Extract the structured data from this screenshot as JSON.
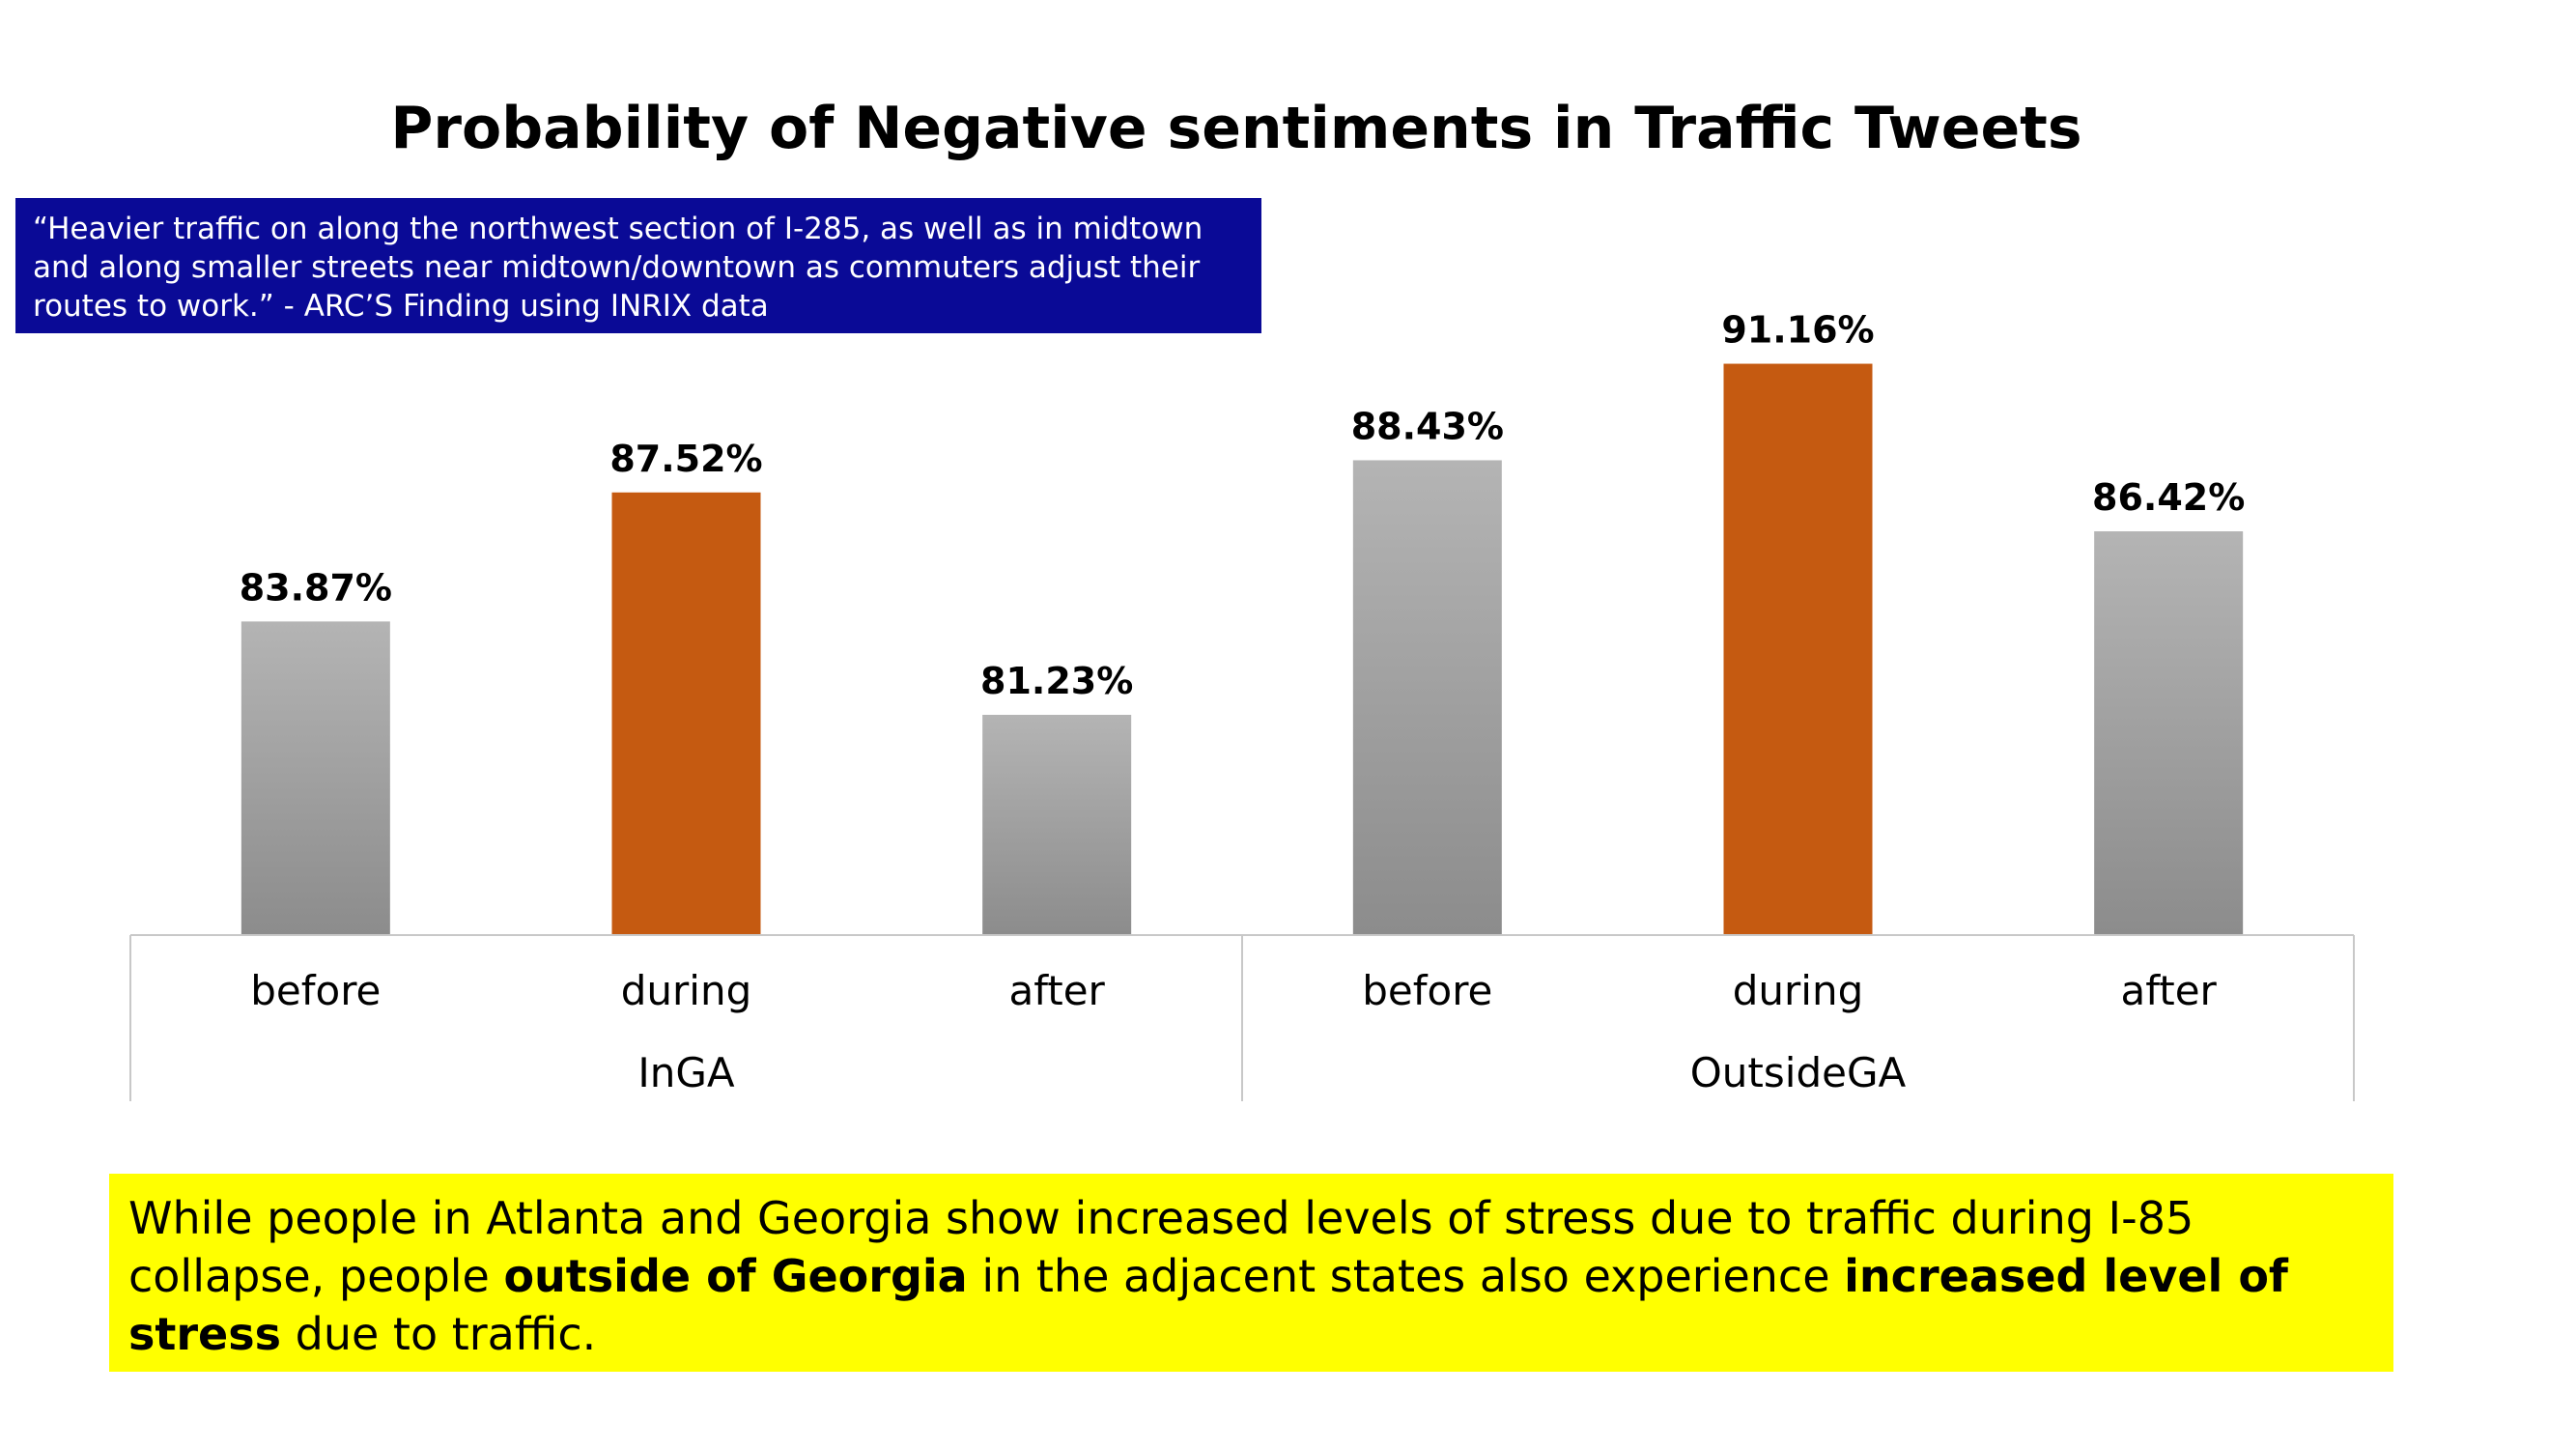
{
  "chart_data": {
    "type": "bar",
    "title": "Probability of Negative sentiments in Traffic Tweets",
    "groups": [
      {
        "name": "InGA",
        "categories": [
          "before",
          "during",
          "after"
        ],
        "values": [
          83.87,
          87.52,
          81.23
        ],
        "labels": [
          "83.87%",
          "87.52%",
          "81.23%"
        ]
      },
      {
        "name": "OutsideGA",
        "categories": [
          "before",
          "during",
          "after"
        ],
        "values": [
          88.43,
          91.16,
          86.42
        ],
        "labels": [
          "88.43%",
          "91.16%",
          "86.42%"
        ]
      }
    ],
    "ylim": [
      75,
      95
    ],
    "grid": false,
    "legend": "none",
    "colors": {
      "before": "#a6a6a6",
      "during": "#c55a11",
      "after": "#a6a6a6"
    }
  },
  "quote": {
    "text": "“Heavier traffic on along the northwest section of I-285, as well as in midtown and along smaller streets near midtown/downtown as commuters adjust their routes to work.” - ARC’S Finding using INRIX data",
    "background": "#0a0a96"
  },
  "summary": {
    "part1": "While people in Atlanta and  Georgia show increased levels of stress due to traffic during I-85 collapse,  people ",
    "bold1": "outside of Georgia",
    "part2": " in the adjacent states also experience ",
    "bold2": "increased level of stress",
    "part3": " due to traffic.",
    "background": "#ffff00"
  }
}
